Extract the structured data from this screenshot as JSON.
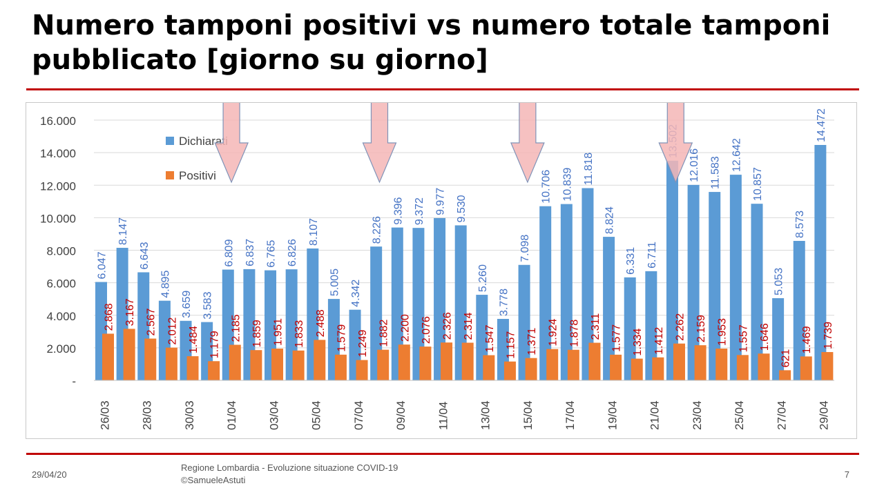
{
  "title": "Numero tamponi positivi vs numero totale tamponi pubblicato [giorno su giorno]",
  "footer": {
    "date": "29/04/20",
    "source_line1": "Regione Lombardia - Evoluzione situazione COVID-19",
    "source_line2": "©SamueleAstuti",
    "page_number": "7"
  },
  "colors": {
    "dichiarati": "#5b9bd5",
    "positivi": "#ed7d31",
    "dichiarati_label": "#4472c4",
    "positivi_label": "#c00000",
    "arrow_fill": "#f4b6b6",
    "arrow_stroke": "#7f93b8",
    "accent_rule": "#c00000"
  },
  "chart_data": {
    "type": "bar",
    "categories": [
      "26/03",
      "27/03",
      "28/03",
      "29/03",
      "30/03",
      "31/03",
      "01/04",
      "02/04",
      "03/04",
      "04/04",
      "05/04",
      "06/04",
      "07/04",
      "08/04",
      "09/04",
      "10/04",
      "11/04",
      "12/04",
      "13/04",
      "14/04",
      "15/04",
      "16/04",
      "17/04",
      "18/04",
      "19/04",
      "20/04",
      "21/04",
      "22/04",
      "23/04",
      "24/04",
      "25/04",
      "26/04",
      "27/04",
      "28/04",
      "29/04"
    ],
    "tick_labels": [
      "26/03",
      "",
      "28/03",
      "",
      "30/03",
      "",
      "01/04",
      "",
      "03/04",
      "",
      "05/04",
      "",
      "07/04",
      "",
      "09/04",
      "",
      "11/04",
      "",
      "13/04",
      "",
      "15/04",
      "",
      "17/04",
      "",
      "19/04",
      "",
      "21/04",
      "",
      "23/04",
      "",
      "25/04",
      "",
      "27/04",
      "",
      "29/04"
    ],
    "series": [
      {
        "name": "Dichiarati",
        "values": [
          6047,
          8147,
          6643,
          4895,
          3659,
          3583,
          6809,
          6837,
          6765,
          6826,
          8107,
          5005,
          4342,
          8226,
          9396,
          9372,
          9977,
          9530,
          5260,
          3778,
          7098,
          10706,
          10839,
          11818,
          8824,
          6331,
          6711,
          13502,
          12016,
          11583,
          12642,
          10857,
          5053,
          8573,
          14472
        ],
        "labels": [
          "6.047",
          "8.147",
          "6.643",
          "4.895",
          "3.659",
          "3.583",
          "6.809",
          "6.837",
          "6.765",
          "6.826",
          "8.107",
          "5.005",
          "4.342",
          "8.226",
          "9.396",
          "9.372",
          "9.977",
          "9.530",
          "5.260",
          "3.778",
          "7.098",
          "10.706",
          "10.839",
          "11.818",
          "8.824",
          "6.331",
          "6.711",
          "13.502",
          "12.016",
          "11.583",
          "12.642",
          "10.857",
          "5.053",
          "8.573",
          "14.472"
        ]
      },
      {
        "name": "Positivi",
        "values": [
          2868,
          3167,
          2567,
          2012,
          1484,
          1179,
          2185,
          1859,
          1951,
          1833,
          2488,
          1579,
          1249,
          1882,
          2200,
          2076,
          2326,
          2314,
          1547,
          1157,
          1371,
          1924,
          1878,
          2311,
          1577,
          1334,
          1412,
          2262,
          2159,
          1953,
          1557,
          1646,
          621,
          1469,
          1739
        ],
        "labels": [
          "2.868",
          "3.167",
          "2.567",
          "2.012",
          "1.484",
          "1.179",
          "2.185",
          "1.859",
          "1.951",
          "1.833",
          "2.488",
          "1.579",
          "1.249",
          "1.882",
          "2.200",
          "2.076",
          "2.326",
          "2.314",
          "1.547",
          "1.157",
          "1.371",
          "1.924",
          "1.878",
          "2.311",
          "1.577",
          "1.334",
          "1.412",
          "2.262",
          "2.159",
          "1.953",
          "1.557",
          "1.646",
          "621",
          "1.469",
          "1.739"
        ]
      }
    ],
    "ylim": [
      0,
      16000
    ],
    "yticks": [
      0,
      2000,
      4000,
      6000,
      8000,
      10000,
      12000,
      14000,
      16000
    ],
    "ytick_labels": [
      "-",
      "2.000",
      "4.000",
      "6.000",
      "8.000",
      "10.000",
      "12.000",
      "14.000",
      "16.000"
    ],
    "grid": true,
    "legend": "top-left",
    "annotations": [
      {
        "type": "down-arrow",
        "category": "01/04"
      },
      {
        "type": "down-arrow",
        "category": "08/04"
      },
      {
        "type": "down-arrow",
        "category": "15/04"
      },
      {
        "type": "down-arrow",
        "category": "22/04"
      }
    ]
  }
}
